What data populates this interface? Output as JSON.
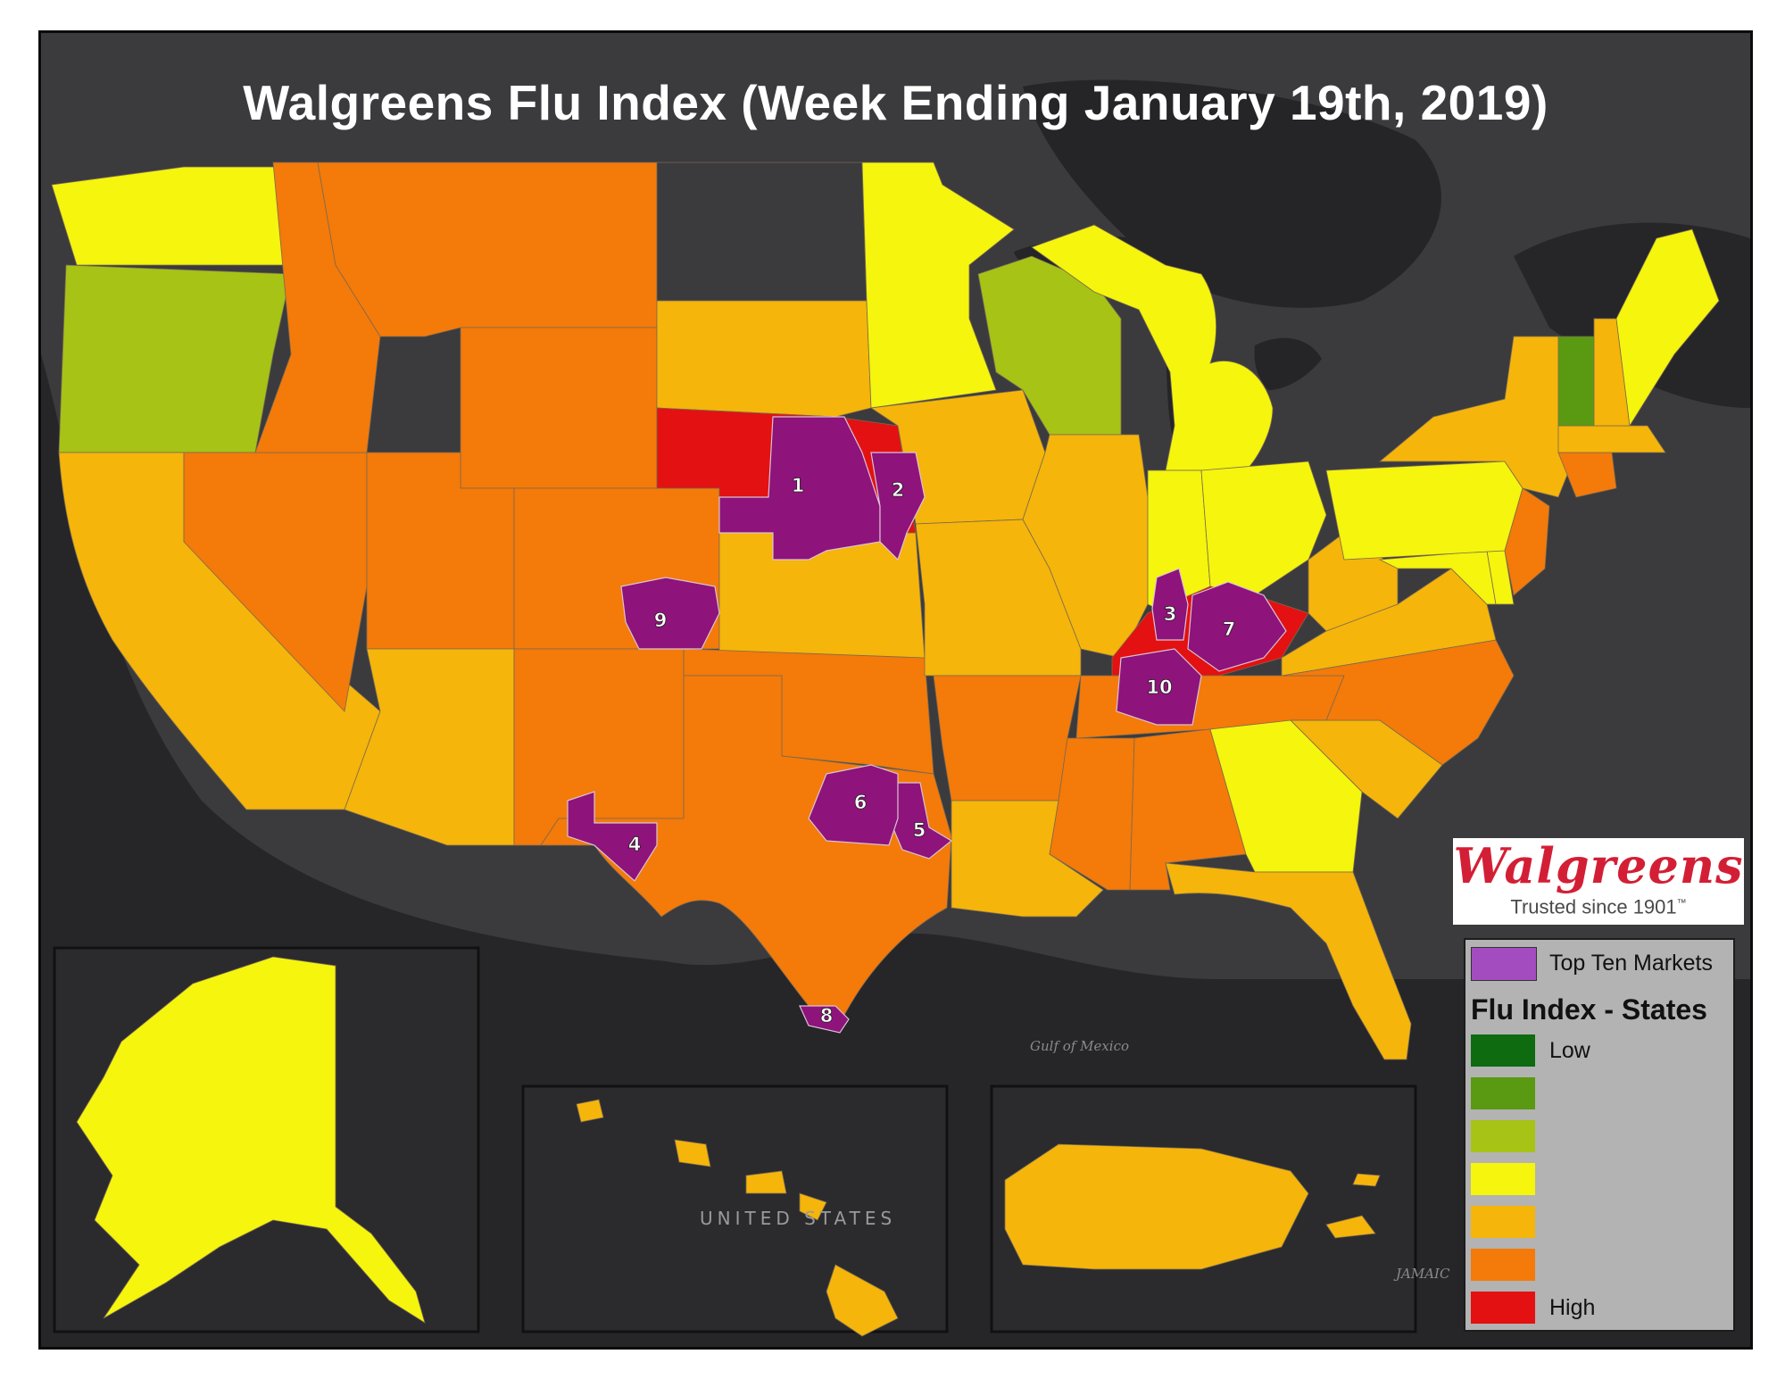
{
  "title": "Walgreens Flu Index (Week Ending January 19th, 2019)",
  "logo": {
    "wordmark": "Walgreens",
    "tagline": "Trusted since 1901",
    "tm": "™"
  },
  "legend": {
    "markets_label": "Top Ten Markets",
    "heading": "Flu Index - States",
    "low_label": "Low",
    "high_label": "High",
    "colors": {
      "markets": "#a24cc0",
      "scale": [
        "#0f6b0f",
        "#5a9a12",
        "#a6c316",
        "#f5f50d",
        "#f5b50a",
        "#f47a0a",
        "#e31111"
      ]
    }
  },
  "map_labels": {
    "gulf": "Gulf of Mexico",
    "hawaii_inset": "UNITED STATES",
    "jamaica": "JAMAIC"
  },
  "markets": [
    {
      "rank": "1",
      "label": "1"
    },
    {
      "rank": "2",
      "label": "2"
    },
    {
      "rank": "3",
      "label": "3"
    },
    {
      "rank": "4",
      "label": "4"
    },
    {
      "rank": "5",
      "label": "5"
    },
    {
      "rank": "6",
      "label": "6"
    },
    {
      "rank": "7",
      "label": "7"
    },
    {
      "rank": "8",
      "label": "8"
    },
    {
      "rank": "9",
      "label": "9"
    },
    {
      "rank": "10",
      "label": "10"
    }
  ],
  "states": [
    {
      "name": "Washington",
      "level": 4
    },
    {
      "name": "Oregon",
      "level": 3
    },
    {
      "name": "California",
      "level": 5
    },
    {
      "name": "Nevada",
      "level": 6
    },
    {
      "name": "Idaho",
      "level": 6
    },
    {
      "name": "Montana",
      "level": 6
    },
    {
      "name": "Wyoming",
      "level": 6
    },
    {
      "name": "Utah",
      "level": 6
    },
    {
      "name": "Colorado",
      "level": 6
    },
    {
      "name": "Arizona",
      "level": 5
    },
    {
      "name": "New Mexico",
      "level": 6
    },
    {
      "name": "South Dakota",
      "level": 5
    },
    {
      "name": "Nebraska",
      "level": 7
    },
    {
      "name": "Kansas",
      "level": 5
    },
    {
      "name": "Oklahoma",
      "level": 6
    },
    {
      "name": "Texas",
      "level": 6
    },
    {
      "name": "Minnesota",
      "level": 4
    },
    {
      "name": "Iowa",
      "level": 5
    },
    {
      "name": "Missouri",
      "level": 5
    },
    {
      "name": "Arkansas",
      "level": 6
    },
    {
      "name": "Louisiana",
      "level": 5
    },
    {
      "name": "Wisconsin",
      "level": 3
    },
    {
      "name": "Illinois",
      "level": 5
    },
    {
      "name": "Michigan",
      "level": 4
    },
    {
      "name": "Indiana",
      "level": 4
    },
    {
      "name": "Ohio",
      "level": 4
    },
    {
      "name": "Kentucky",
      "level": 7
    },
    {
      "name": "Tennessee",
      "level": 6
    },
    {
      "name": "Mississippi",
      "level": 6
    },
    {
      "name": "Alabama",
      "level": 6
    },
    {
      "name": "Georgia",
      "level": 4
    },
    {
      "name": "Florida",
      "level": 5
    },
    {
      "name": "South Carolina",
      "level": 5
    },
    {
      "name": "North Carolina",
      "level": 6
    },
    {
      "name": "Virginia",
      "level": 5
    },
    {
      "name": "West Virginia",
      "level": 5
    },
    {
      "name": "Maryland",
      "level": 4
    },
    {
      "name": "Delaware",
      "level": 4
    },
    {
      "name": "Pennsylvania",
      "level": 4
    },
    {
      "name": "New Jersey",
      "level": 6
    },
    {
      "name": "New York",
      "level": 5
    },
    {
      "name": "Connecticut",
      "level": 6
    },
    {
      "name": "Massachusetts",
      "level": 5
    },
    {
      "name": "Vermont",
      "level": 2
    },
    {
      "name": "New Hampshire",
      "level": 5
    },
    {
      "name": "Maine",
      "level": 4
    },
    {
      "name": "North Dakota",
      "level": 0
    },
    {
      "name": "Alaska",
      "level": 4
    },
    {
      "name": "Hawaii",
      "level": 5
    },
    {
      "name": "Puerto Rico",
      "level": 5
    }
  ]
}
